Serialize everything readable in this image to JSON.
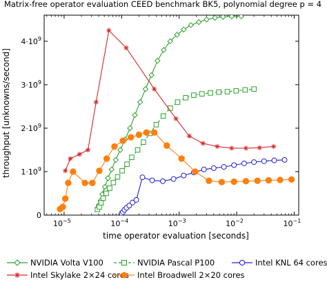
{
  "chart_data": {
    "type": "line",
    "title": "Matrix-free operator evaluation CEED benchmark BK5, polynomial degree p = 4",
    "xlabel": "time operator evaluation [seconds]",
    "ylabel": "throughput [unknowns/second]",
    "x_scale": "log",
    "xlim": [
      4.5e-06,
      0.12
    ],
    "ylim": [
      0,
      4600000000
    ],
    "x_ticks": [
      {
        "value": 1e-05,
        "base": "10",
        "exp": "−5"
      },
      {
        "value": 0.0001,
        "base": "10",
        "exp": "−4"
      },
      {
        "value": 0.001,
        "base": "10",
        "exp": "−3"
      },
      {
        "value": 0.01,
        "base": "10",
        "exp": "−2"
      },
      {
        "value": 0.1,
        "base": "10",
        "exp": "−1"
      }
    ],
    "y_ticks": [
      {
        "value": 0,
        "label": "0"
      },
      {
        "value": 1000000000,
        "label": "1·10",
        "exp": "9"
      },
      {
        "value": 2000000000,
        "label": "2·10",
        "exp": "9"
      },
      {
        "value": 3000000000,
        "label": "3·10",
        "exp": "9"
      },
      {
        "value": 4000000000,
        "label": "4·10",
        "exp": "9"
      }
    ],
    "grid": false,
    "legend_position": "bottom",
    "series": [
      {
        "name": "NVIDIA Volta V100",
        "color": "#2ca02c",
        "marker": "diamond",
        "dashed": false,
        "x": [
          3.8e-05,
          4e-05,
          4.3e-05,
          4.6e-05,
          5.1e-05,
          5.8e-05,
          6.7e-05,
          7.9e-05,
          9.5e-05,
          0.000115,
          0.00014,
          0.00017,
          0.00021,
          0.00026,
          0.00033,
          0.00042,
          0.00054,
          0.0007,
          0.00092,
          0.0012,
          0.0016,
          0.0022,
          0.003,
          0.0042,
          0.0058,
          0.0082,
          0.012
        ],
        "y": [
          160000000,
          230000000,
          330000000,
          480000000,
          650000000,
          850000000,
          1050000000,
          1270000000,
          1500000000,
          1740000000,
          2000000000,
          2300000000,
          2600000000,
          2900000000,
          3220000000,
          3550000000,
          3800000000,
          4000000000,
          4150000000,
          4270000000,
          4370000000,
          4440000000,
          4500000000,
          4540000000,
          4560000000,
          4570000000,
          4575000000
        ]
      },
      {
        "name": "NVIDIA Pascal P100",
        "color": "#2ca02c",
        "marker": "square",
        "dashed": true,
        "x": [
          3.8e-05,
          4.1e-05,
          4.4e-05,
          4.8e-05,
          5.4e-05,
          6.2e-05,
          7.2e-05,
          8.5e-05,
          0.000102,
          0.000124,
          0.00015,
          0.00019,
          0.00024,
          0.00031,
          0.0004,
          0.00053,
          0.0007,
          0.00094,
          0.0013,
          0.0018,
          0.0025,
          0.0035,
          0.0049,
          0.0069,
          0.0098,
          0.014,
          0.02
        ],
        "y": [
          130000000,
          190000000,
          280000000,
          390000000,
          500000000,
          620000000,
          750000000,
          880000000,
          1020000000,
          1170000000,
          1330000000,
          1500000000,
          1680000000,
          1880000000,
          2080000000,
          2280000000,
          2460000000,
          2600000000,
          2700000000,
          2760000000,
          2790000000,
          2810000000,
          2830000000,
          2840000000,
          2860000000,
          2880000000,
          2900000000
        ]
      },
      {
        "name": "Intel KNL 64 cores",
        "color": "#1f1fcc",
        "marker": "circle",
        "dashed": false,
        "x": [
          0.0001,
          0.000105,
          0.000112,
          0.000122,
          0.000136,
          0.000155,
          0.00018,
          0.00023,
          0.00034,
          0.00052,
          0.0008,
          0.0012,
          0.0018,
          0.0027,
          0.004,
          0.006,
          0.009,
          0.0135,
          0.02,
          0.03,
          0.045,
          0.068
        ],
        "y": [
          40000000,
          70000000,
          120000000,
          170000000,
          220000000,
          290000000,
          350000000,
          870000000,
          800000000,
          780000000,
          830000000,
          910000000,
          980000000,
          1050000000,
          1080000000,
          1110000000,
          1150000000,
          1190000000,
          1220000000,
          1240000000,
          1260000000,
          1270000000
        ]
      },
      {
        "name": "Intel Skylake 2×24 cores",
        "color": "#d62728",
        "marker": "star",
        "dashed": false,
        "x": [
          1.05e-05,
          1.28e-05,
          1.85e-05,
          2.6e-05,
          3.6e-05,
          6e-05,
          0.00012,
          0.00037,
          0.00088,
          0.0015,
          0.0026,
          0.0046,
          0.0082,
          0.0145,
          0.025,
          0.044
        ],
        "y": [
          1020000000,
          1300000000,
          1400000000,
          1500000000,
          2600000000,
          4250000000,
          3850000000,
          2900000000,
          2220000000,
          1820000000,
          1650000000,
          1580000000,
          1540000000,
          1540000000,
          1550000000,
          1580000000
        ]
      },
      {
        "name": "Intel Broadwell 2×20 cores",
        "color": "#ff7f0e",
        "marker": "filled-circle",
        "dashed": false,
        "x": [
          8.5e-06,
          9.5e-06,
          1.05e-05,
          1.18e-05,
          1.43e-05,
          2.3e-05,
          3.1e-05,
          4.1e-05,
          5.5e-05,
          7.5e-05,
          0.000105,
          0.000145,
          0.0002,
          0.00027,
          0.00037,
          0.00061,
          0.0011,
          0.0019,
          0.0033,
          0.0055,
          0.009,
          0.0145,
          0.023,
          0.036,
          0.057,
          0.09
        ],
        "y": [
          140000000,
          190000000,
          380000000,
          740000000,
          1000000000,
          740000000,
          740000000,
          1020000000,
          1300000000,
          1580000000,
          1710000000,
          1790000000,
          1850000000,
          1900000000,
          1900000000,
          1600000000,
          1300000000,
          1000000000,
          790000000,
          760000000,
          770000000,
          780000000,
          790000000,
          800000000,
          810000000,
          820000000
        ]
      }
    ]
  }
}
